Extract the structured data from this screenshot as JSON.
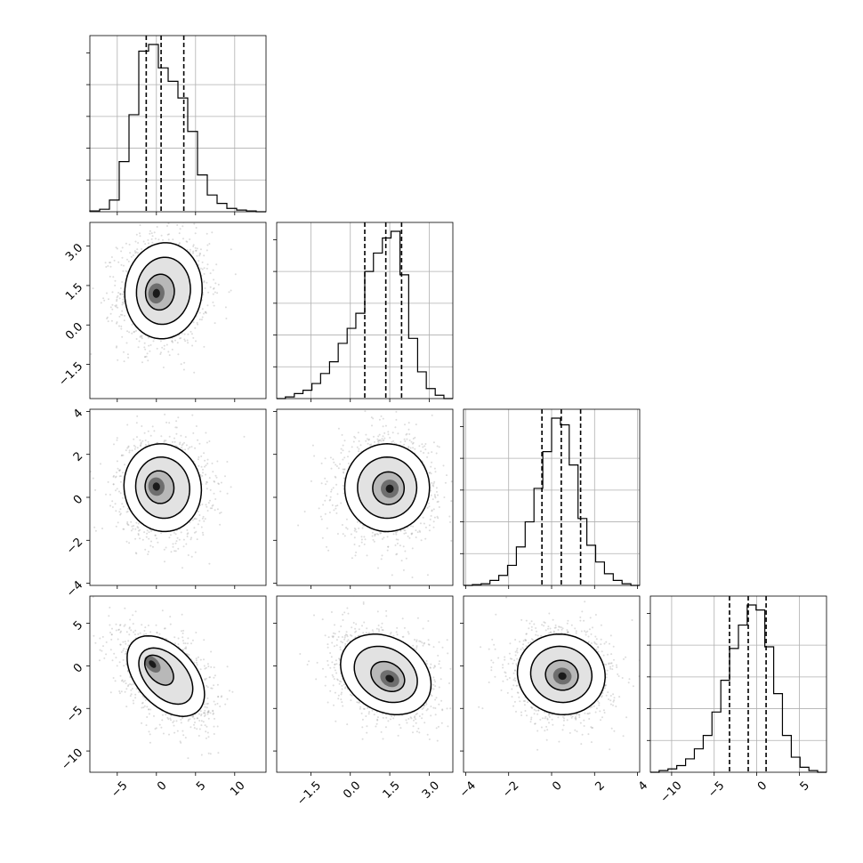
{
  "chart_data": {
    "type": "corner",
    "n_params": 4,
    "params": [
      {
        "name": "",
        "range": [
          -8.5,
          14
        ],
        "ticks": [
          -5,
          0,
          5,
          10
        ],
        "tick_labels": [
          "−5",
          "0",
          "5",
          "10"
        ],
        "mean": 0.6,
        "sd": 2.4,
        "quantiles": [
          -1.3,
          0.6,
          3.5
        ]
      },
      {
        "name": "",
        "range": [
          -2.8,
          3.9
        ],
        "ticks": [
          -1.5,
          0.0,
          1.5,
          3.0
        ],
        "tick_labels": [
          "−1.5",
          "0.0",
          "1.5",
          "3.0"
        ],
        "mean": 1.35,
        "sd": 0.75,
        "quantiles": [
          0.55,
          1.35,
          1.95
        ]
      },
      {
        "name": "",
        "range": [
          -4.1,
          4.1
        ],
        "ticks": [
          -4,
          -2,
          0,
          2,
          4
        ],
        "tick_labels": [
          "−4",
          "−2",
          "0",
          "2",
          "4"
        ],
        "mean": 0.4,
        "sd": 0.95,
        "quantiles": [
          -0.45,
          0.45,
          1.35
        ]
      },
      {
        "name": "",
        "range": [
          -12.5,
          8.2
        ],
        "ticks": [
          -10,
          -5,
          0,
          5
        ],
        "tick_labels": [
          "−10",
          "−5",
          "0",
          "5"
        ],
        "mean": -1.0,
        "sd": 2.2,
        "quantiles": [
          -3.2,
          -1.0,
          1.1
        ]
      }
    ],
    "histograms": [
      {
        "param": 0,
        "edges": [
          -8.5,
          -7.25,
          -6.0,
          -4.75,
          -3.5,
          -2.25,
          -1.0,
          0.25,
          1.5,
          2.75,
          4.0,
          5.25,
          6.5,
          7.75,
          9.0,
          10.25,
          11.5,
          12.75,
          14.0
        ],
        "counts": [
          0.5,
          1.5,
          7,
          30,
          58,
          96,
          100,
          86,
          78,
          68,
          48,
          22,
          10,
          5,
          2,
          1,
          0.5,
          0
        ]
      },
      {
        "param": 1,
        "edges": [
          -2.8,
          -2.47,
          -2.13,
          -1.8,
          -1.46,
          -1.13,
          -0.79,
          -0.46,
          -0.12,
          0.21,
          0.55,
          0.88,
          1.22,
          1.55,
          1.89,
          2.22,
          2.56,
          2.89,
          3.23,
          3.56,
          3.9
        ],
        "counts": [
          0,
          1,
          3,
          5,
          9,
          15,
          22,
          33,
          42,
          51,
          76,
          87,
          96,
          100,
          74,
          36,
          16,
          6,
          2,
          0
        ]
      },
      {
        "param": 2,
        "edges": [
          -4.1,
          -3.69,
          -3.28,
          -2.87,
          -2.46,
          -2.05,
          -1.64,
          -1.23,
          -0.82,
          -0.41,
          0.0,
          0.41,
          0.82,
          1.23,
          1.64,
          2.05,
          2.46,
          2.87,
          3.28,
          3.69,
          4.1
        ],
        "counts": [
          0,
          0.5,
          1,
          3,
          6,
          12,
          23,
          38,
          58,
          80,
          100,
          96,
          72,
          40,
          24,
          14,
          7,
          3,
          1,
          0
        ]
      },
      {
        "param": 3,
        "edges": [
          -12.5,
          -11.47,
          -10.43,
          -9.4,
          -8.36,
          -7.33,
          -6.29,
          -5.26,
          -4.22,
          -3.19,
          -2.15,
          -1.12,
          -0.08,
          0.95,
          1.99,
          3.02,
          4.06,
          5.09,
          6.13,
          7.16,
          8.2
        ],
        "counts": [
          0,
          1,
          2,
          4,
          8,
          14,
          22,
          36,
          55,
          74,
          88,
          100,
          97,
          75,
          47,
          22,
          9,
          3,
          1,
          0
        ]
      }
    ],
    "pairs": [
      {
        "x": 0,
        "y": 1,
        "center": [
          0.9,
          1.3
        ],
        "sd": [
          2.3,
          0.85
        ],
        "rho": 0.05,
        "peak": [
          0.0,
          1.2
        ]
      },
      {
        "x": 0,
        "y": 2,
        "center": [
          0.8,
          0.45
        ],
        "sd": [
          2.3,
          0.95
        ],
        "rho": -0.05,
        "peak": [
          0.0,
          0.5
        ]
      },
      {
        "x": 1,
        "y": 2,
        "center": [
          1.4,
          0.45
        ],
        "sd": [
          0.75,
          0.95
        ],
        "rho": 0.0,
        "peak": [
          1.5,
          0.4
        ]
      },
      {
        "x": 0,
        "y": 3,
        "center": [
          1.2,
          -1.2
        ],
        "sd": [
          2.3,
          2.2
        ],
        "rho": -0.45,
        "peak": [
          -0.5,
          0.2
        ]
      },
      {
        "x": 1,
        "y": 3,
        "center": [
          1.35,
          -1.0
        ],
        "sd": [
          0.8,
          2.2
        ],
        "rho": -0.25,
        "peak": [
          1.5,
          -1.5
        ]
      },
      {
        "x": 2,
        "y": 3,
        "center": [
          0.45,
          -1.0
        ],
        "sd": [
          0.95,
          2.2
        ],
        "rho": -0.05,
        "peak": [
          0.5,
          -1.2
        ]
      }
    ],
    "contour_levels_sigma": [
      0.8,
      1.5,
      2.15
    ],
    "grid": true,
    "legend": "none"
  }
}
